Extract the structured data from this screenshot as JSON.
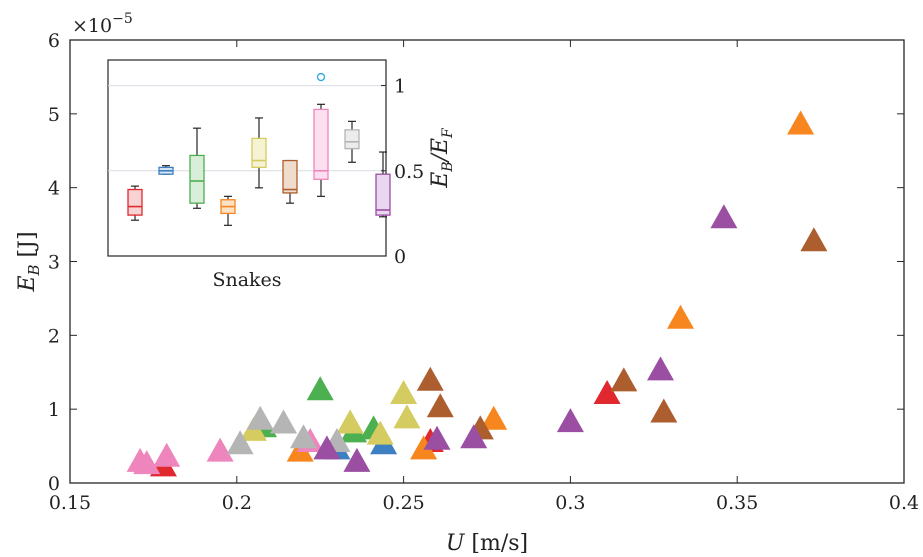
{
  "chart_data": [
    {
      "type": "scatter",
      "marker": "triangle",
      "title": "",
      "xlabel": "U",
      "xlabel_unit": "[m/s]",
      "ylabel": "E",
      "ylabel_sub": "B",
      "ylabel_unit": "[J]",
      "y_exponent_base": "×10",
      "y_exponent_power": "−5",
      "xlim": [
        0.15,
        0.4
      ],
      "ylim": [
        0,
        6
      ],
      "xticks": [
        0.15,
        0.2,
        0.25,
        0.3,
        0.35,
        0.4
      ],
      "xtick_labels": [
        "0.15",
        "0.2",
        "0.25",
        "0.3",
        "0.35",
        "0.4"
      ],
      "yticks": [
        0,
        1,
        2,
        3,
        4,
        5,
        6
      ],
      "ytick_labels": [
        "0",
        "1",
        "2",
        "3",
        "4",
        "5",
        "6"
      ],
      "grid": false,
      "series": [
        {
          "color": "#e0282e",
          "points": [
            [
              0.178,
              0.22
            ],
            [
              0.258,
              0.55
            ],
            [
              0.311,
              1.2
            ]
          ]
        },
        {
          "color": "#3d7fc1",
          "points": [
            [
              0.23,
              0.45
            ],
            [
              0.244,
              0.52
            ]
          ]
        },
        {
          "color": "#4caf50",
          "points": [
            [
              0.208,
              0.75
            ],
            [
              0.225,
              1.25
            ],
            [
              0.235,
              0.68
            ],
            [
              0.241,
              0.72
            ]
          ]
        },
        {
          "color": "#f7861e",
          "points": [
            [
              0.219,
              0.42
            ],
            [
              0.256,
              0.45
            ],
            [
              0.277,
              0.85
            ],
            [
              0.333,
              2.22
            ],
            [
              0.369,
              4.85
            ]
          ]
        },
        {
          "color": "#d4cb61",
          "points": [
            [
              0.205,
              0.7
            ],
            [
              0.234,
              0.8
            ],
            [
              0.25,
              1.2
            ],
            [
              0.251,
              0.87
            ],
            [
              0.243,
              0.65
            ]
          ]
        },
        {
          "color": "#ad5e2f",
          "points": [
            [
              0.258,
              1.38
            ],
            [
              0.261,
              1.02
            ],
            [
              0.273,
              0.72
            ],
            [
              0.316,
              1.37
            ],
            [
              0.328,
              0.95
            ],
            [
              0.373,
              3.27
            ]
          ]
        },
        {
          "color": "#ee85bc",
          "points": [
            [
              0.171,
              0.28
            ],
            [
              0.173,
              0.25
            ],
            [
              0.179,
              0.35
            ],
            [
              0.195,
              0.42
            ],
            [
              0.222,
              0.55
            ]
          ]
        },
        {
          "color": "#b5b5b5",
          "points": [
            [
              0.201,
              0.52
            ],
            [
              0.207,
              0.85
            ],
            [
              0.214,
              0.8
            ],
            [
              0.22,
              0.6
            ],
            [
              0.23,
              0.55
            ]
          ]
        },
        {
          "color": "#9a4fa3",
          "points": [
            [
              0.227,
              0.45
            ],
            [
              0.236,
              0.28
            ],
            [
              0.26,
              0.58
            ],
            [
              0.271,
              0.6
            ],
            [
              0.3,
              0.82
            ],
            [
              0.327,
              1.52
            ],
            [
              0.346,
              3.58
            ]
          ]
        }
      ]
    },
    {
      "type": "box",
      "xlabel": "Snakes",
      "ylabel": "E",
      "ylabel_sub": "B",
      "ylabel_den": "E",
      "ylabel_den_sub": "F",
      "ylim": [
        0,
        1.15
      ],
      "yticks": [
        0,
        0.5,
        1
      ],
      "ytick_labels": [
        "0",
        "0.5",
        "1"
      ],
      "grid_y": [
        0.5,
        1
      ],
      "boxes": [
        {
          "color": "#e0282e",
          "fill": "#f8d3d4",
          "min": 0.21,
          "q1": 0.24,
          "median": 0.29,
          "q3": 0.39,
          "max": 0.41
        },
        {
          "color": "#3d7fc1",
          "fill": "#d6e5f4",
          "min": 0.48,
          "q1": 0.48,
          "median": 0.5,
          "q3": 0.52,
          "max": 0.53
        },
        {
          "color": "#4caf50",
          "fill": "#d8eed8",
          "min": 0.28,
          "q1": 0.31,
          "median": 0.44,
          "q3": 0.59,
          "max": 0.75
        },
        {
          "color": "#f7861e",
          "fill": "#fde2c6",
          "min": 0.18,
          "q1": 0.25,
          "median": 0.29,
          "q3": 0.33,
          "max": 0.35
        },
        {
          "color": "#d4cb61",
          "fill": "#f6f3d5",
          "min": 0.4,
          "q1": 0.52,
          "median": 0.56,
          "q3": 0.69,
          "max": 0.81
        },
        {
          "color": "#ad5e2f",
          "fill": "#f0dccd",
          "min": 0.31,
          "q1": 0.37,
          "median": 0.39,
          "q3": 0.56,
          "max": 0.56
        },
        {
          "color": "#ee85bc",
          "fill": "#fde0ef",
          "min": 0.35,
          "q1": 0.45,
          "median": 0.5,
          "q3": 0.86,
          "max": 0.89
        },
        {
          "color": "#b5b5b5",
          "fill": "#ececec",
          "min": 0.55,
          "q1": 0.63,
          "median": 0.67,
          "q3": 0.74,
          "max": 0.79
        },
        {
          "color": "#9a4fa3",
          "fill": "#ead6ee",
          "min": 0.23,
          "q1": 0.24,
          "median": 0.27,
          "q3": 0.48,
          "max": 0.61
        }
      ],
      "outliers": [
        {
          "box": 6,
          "value": 1.05,
          "color": "#2ba6de"
        }
      ]
    }
  ]
}
